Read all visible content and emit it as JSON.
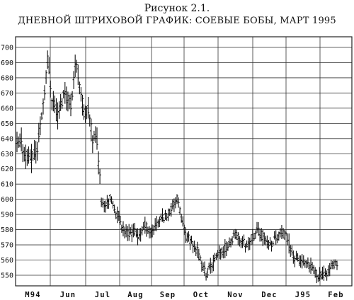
{
  "figure_label": "Рисунок 2.1.",
  "chart_data": {
    "type": "ohlc",
    "title": "ДНЕВНОЙ ШТРИХОВОЙ ГРАФИК: СОЕВЫЕ БОБЫ, МАРТ 1995",
    "xlabel": "",
    "ylabel": "",
    "ylim": [
      543,
      707
    ],
    "yticks": [
      550,
      560,
      570,
      580,
      590,
      600,
      610,
      620,
      630,
      640,
      650,
      660,
      670,
      680,
      690,
      700
    ],
    "months": [
      "M94",
      "Jun",
      "Jul",
      "Aug",
      "Sep",
      "Oct",
      "Nov",
      "Dec",
      "J95",
      "Feb"
    ],
    "grid": true,
    "anchors": [
      [
        0,
        634
      ],
      [
        3,
        636
      ],
      [
        6,
        630
      ],
      [
        10,
        627
      ],
      [
        14,
        633
      ],
      [
        18,
        664
      ],
      [
        21,
        692
      ],
      [
        24,
        668
      ],
      [
        28,
        655
      ],
      [
        33,
        672
      ],
      [
        37,
        662
      ],
      [
        40,
        690
      ],
      [
        43,
        678
      ],
      [
        46,
        656
      ],
      [
        49,
        658
      ],
      [
        52,
        641
      ],
      [
        55,
        640
      ],
      [
        58,
        600
      ],
      [
        61,
        597
      ],
      [
        64,
        600
      ],
      [
        68,
        592
      ],
      [
        72,
        583
      ],
      [
        76,
        577
      ],
      [
        80,
        579
      ],
      [
        84,
        575
      ],
      [
        88,
        583
      ],
      [
        92,
        578
      ],
      [
        96,
        584
      ],
      [
        100,
        588
      ],
      [
        104,
        590
      ],
      [
        107,
        596
      ],
      [
        110,
        600
      ],
      [
        113,
        588
      ],
      [
        116,
        576
      ],
      [
        120,
        572
      ],
      [
        124,
        566
      ],
      [
        127,
        556
      ],
      [
        130,
        551
      ],
      [
        134,
        557
      ],
      [
        138,
        563
      ],
      [
        142,
        566
      ],
      [
        146,
        571
      ],
      [
        150,
        577
      ],
      [
        154,
        573
      ],
      [
        158,
        570
      ],
      [
        162,
        575
      ],
      [
        166,
        580
      ],
      [
        170,
        574
      ],
      [
        174,
        570
      ],
      [
        178,
        575
      ],
      [
        182,
        578
      ],
      [
        186,
        574
      ],
      [
        190,
        562
      ],
      [
        194,
        560
      ],
      [
        198,
        557
      ],
      [
        202,
        555
      ],
      [
        206,
        551
      ],
      [
        210,
        549
      ],
      [
        214,
        553
      ],
      [
        218,
        557
      ],
      [
        220,
        556
      ]
    ],
    "bars": 221
  }
}
